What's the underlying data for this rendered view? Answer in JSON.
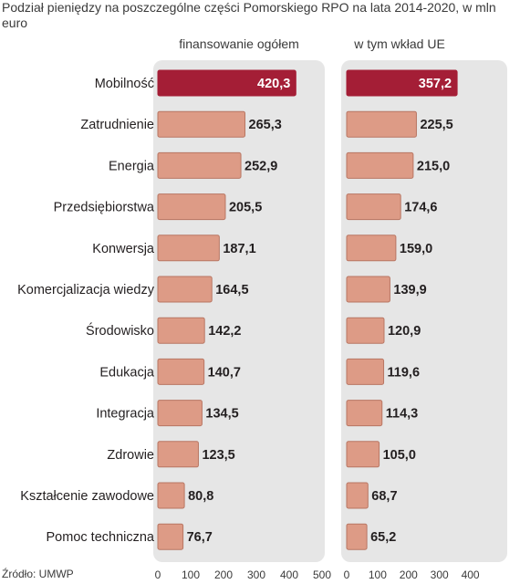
{
  "title": "Podział pieniędzy na poszczególne części Pomorskiego RPO na lata 2014-2020, w mln euro",
  "source": "Źródło: UMWP",
  "colors": {
    "bar": "#dd9b86",
    "bar_stroke": "#b87663",
    "highlight": "#a41e36",
    "panel": "#e6e6e6"
  },
  "chart_data": [
    {
      "type": "bar",
      "orientation": "horizontal",
      "title": "finansowanie ogółem",
      "categories": [
        "Mobilność",
        "Zatrudnienie",
        "Energia",
        "Przedsiębiorstwa",
        "Konwersja",
        "Komercjalizacja wiedzy",
        "Środowisko",
        "Edukacja",
        "Integracja",
        "Zdrowie",
        "Kształcenie zawodowe",
        "Pomoc techniczna"
      ],
      "values": [
        420.3,
        265.3,
        252.9,
        205.5,
        187.1,
        164.5,
        142.2,
        140.7,
        134.5,
        123.5,
        80.8,
        76.7
      ],
      "labels": [
        "420,3",
        "265,3",
        "252,9",
        "205,5",
        "187,1",
        "164,5",
        "142,2",
        "140,7",
        "134,5",
        "123,5",
        "80,8",
        "76,7"
      ],
      "xlim": [
        0,
        500
      ],
      "xticks": [
        "0",
        "100",
        "200",
        "300",
        "400",
        "500"
      ],
      "highlight_index": 0
    },
    {
      "type": "bar",
      "orientation": "horizontal",
      "title": "w tym wkład UE",
      "categories": [
        "Mobilność",
        "Zatrudnienie",
        "Energia",
        "Przedsiębiorstwa",
        "Konwersja",
        "Komercjalizacja wiedzy",
        "Środowisko",
        "Edukacja",
        "Integracja",
        "Zdrowie",
        "Kształcenie zawodowe",
        "Pomoc techniczna"
      ],
      "values": [
        357.2,
        225.5,
        215.0,
        174.6,
        159.0,
        139.9,
        120.9,
        119.6,
        114.3,
        105.0,
        68.7,
        65.2
      ],
      "labels": [
        "357,2",
        "225,5",
        "215,0",
        "174,6",
        "159,0",
        "139,9",
        "120,9",
        "119,6",
        "114,3",
        "105,0",
        "68,7",
        "65,2"
      ],
      "xlim": [
        0,
        400
      ],
      "xticks": [
        "0",
        "100",
        "200",
        "300",
        "400"
      ],
      "highlight_index": 0
    }
  ]
}
